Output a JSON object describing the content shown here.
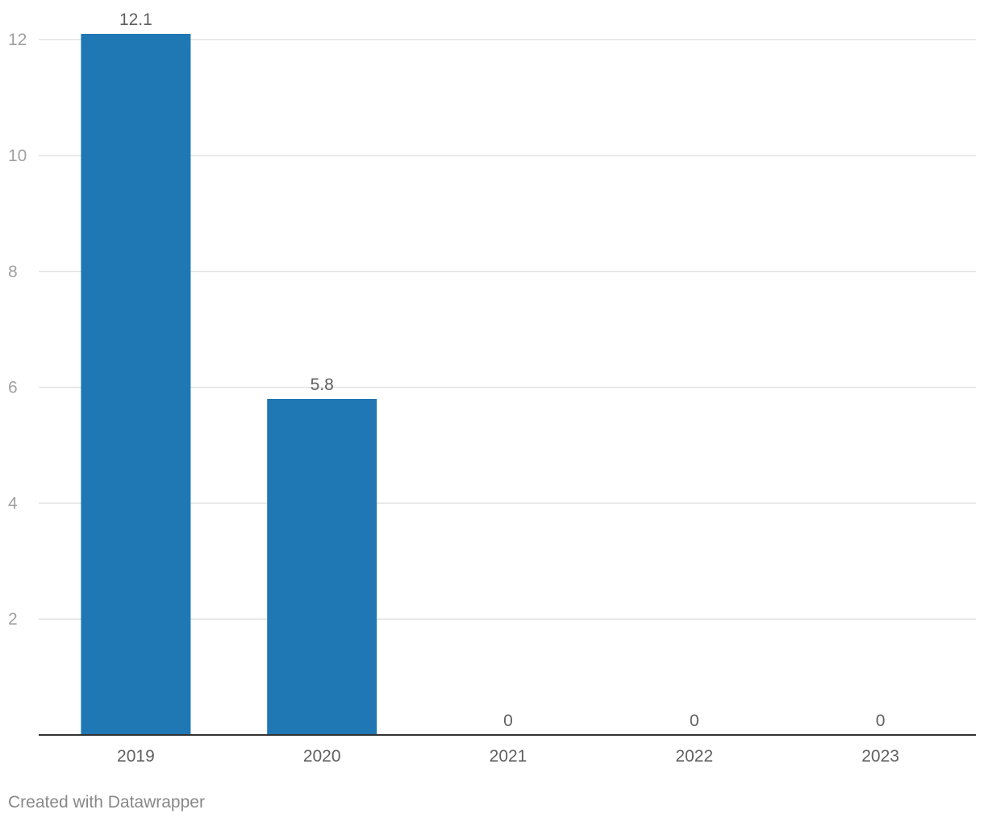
{
  "chart_data": {
    "type": "bar",
    "categories": [
      "2019",
      "2020",
      "2021",
      "2022",
      "2023"
    ],
    "values": [
      12.1,
      5.8,
      0,
      0,
      0
    ],
    "value_labels": [
      "12.1",
      "5.8",
      "0",
      "0",
      "0"
    ],
    "yticks": [
      2,
      4,
      6,
      8,
      10,
      12
    ],
    "ylim": [
      0,
      12.7
    ],
    "grid": true,
    "bar_color": "#1f77b4"
  },
  "footer": {
    "credit": "Created with Datawrapper"
  }
}
